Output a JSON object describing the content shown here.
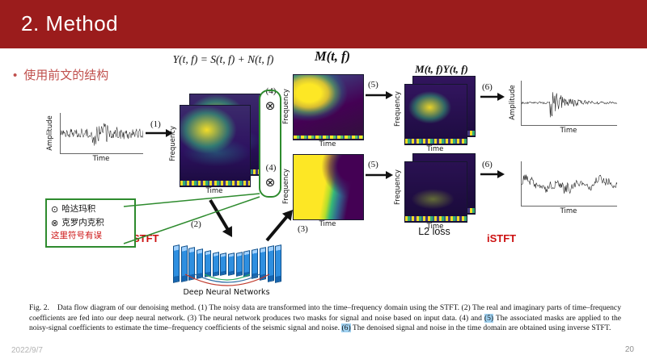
{
  "slide": {
    "title": "2. Method",
    "bullet_marker": "•",
    "bullet_text": "使用前文的结构",
    "date": "2022/9/7",
    "page_number": "20"
  },
  "formulas": {
    "input": "Y(t, f) = S(t, f) + N(t, f)",
    "mask": "M(t, f)",
    "masked": "M(t, f)Y(t, f)"
  },
  "labels": {
    "amplitude": "Amplitude",
    "frequency": "Frequency",
    "time": "Time",
    "stft": "STFT",
    "istft": "iSTFT",
    "l2_loss": "L2 loss",
    "dnn": "Deep Neural Networks"
  },
  "steps": {
    "s1": "(1)",
    "s2": "(2)",
    "s3": "(3)",
    "s4": "(4)",
    "s5": "(5)",
    "s6": "(6)"
  },
  "operators": {
    "multiply": "⊗"
  },
  "legend": {
    "hadamard_symbol": "⊙",
    "hadamard": "哈达玛积",
    "kronecker_symbol": "⊗",
    "kronecker": "克罗内克积",
    "note": "这里符号有误"
  },
  "caption": {
    "fig_label": "Fig. 2.",
    "part1": "Data flow diagram of our denoising method. (1) The noisy data are transformed into the time–frequency domain using the STFT. (2) The real and imaginary parts of time–frequency coefficients are fed into our deep neural network. (3) The neural network produces two masks for signal and noise based on input data. (4) and ",
    "hl5": "(5)",
    "part2": " The associated masks are applied to the noisy-signal coefficients to estimate the time–frequency coefficients of the seismic signal and noise. ",
    "hl6": "(6)",
    "part3": " The denoised signal and noise in the time domain are obtained using inverse STFT."
  },
  "colors": {
    "header": "#9b1c1c",
    "accent_red": "#cc1111",
    "bullet_red": "#c0504d",
    "legend_green": "#2e8b2e",
    "caption_highlight": "#9fd1f1"
  }
}
